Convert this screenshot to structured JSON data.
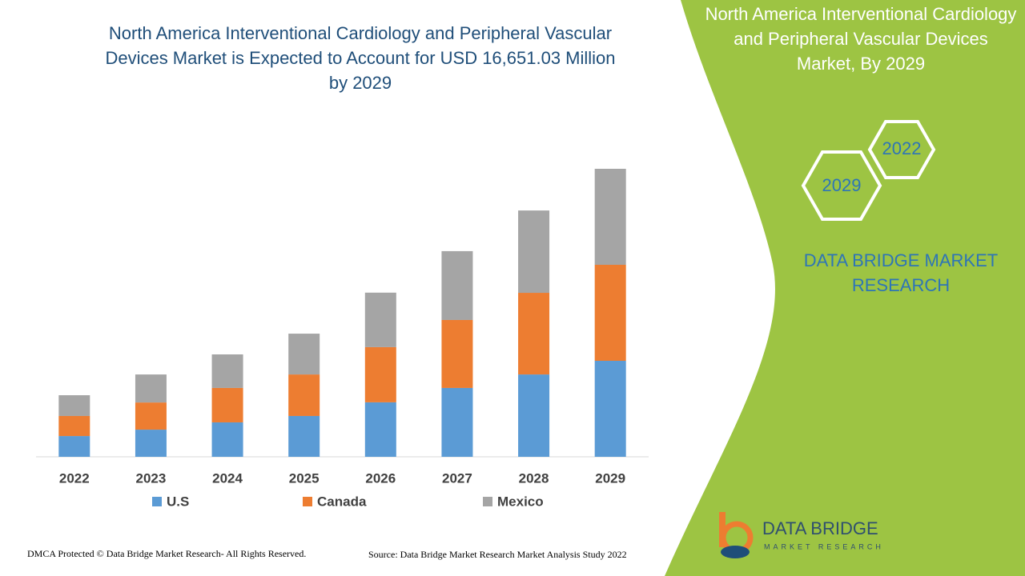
{
  "chart_data": {
    "type": "stacked-bar",
    "title": "North America Interventional Cardiology and Peripheral Vascular Devices Market is Expected to Account for USD 16,651.03 Million by 2029",
    "categories": [
      "2022",
      "2023",
      "2024",
      "2025",
      "2026",
      "2027",
      "2028",
      "2029"
    ],
    "series": [
      {
        "name": "U.S",
        "color": "#5b9bd5",
        "values": [
          1200,
          1570,
          1990,
          2360,
          3150,
          3980,
          4760,
          5550
        ]
      },
      {
        "name": "Canada",
        "color": "#ed7d31",
        "values": [
          1160,
          1570,
          1990,
          2400,
          3190,
          3930,
          4720,
          5550
        ]
      },
      {
        "name": "Mexico",
        "color": "#a5a5a5",
        "values": [
          1200,
          1620,
          1940,
          2360,
          3150,
          3980,
          4760,
          5550
        ]
      }
    ]
  },
  "side_panel": {
    "title": "North America Interventional Cardiology and Peripheral Vascular Devices Market, By 2029",
    "hexagons": [
      "2022",
      "2029"
    ],
    "brand": "DATA BRIDGE MARKET RESEARCH"
  },
  "logo": {
    "name": "DATA BRIDGE",
    "tagline": "MARKET RESEARCH"
  },
  "footer": {
    "copyright": "DMCA Protected © Data Bridge Market Research- All Rights Reserved.",
    "source": "Source: Data Bridge Market Research Market Analysis Study 2022"
  }
}
